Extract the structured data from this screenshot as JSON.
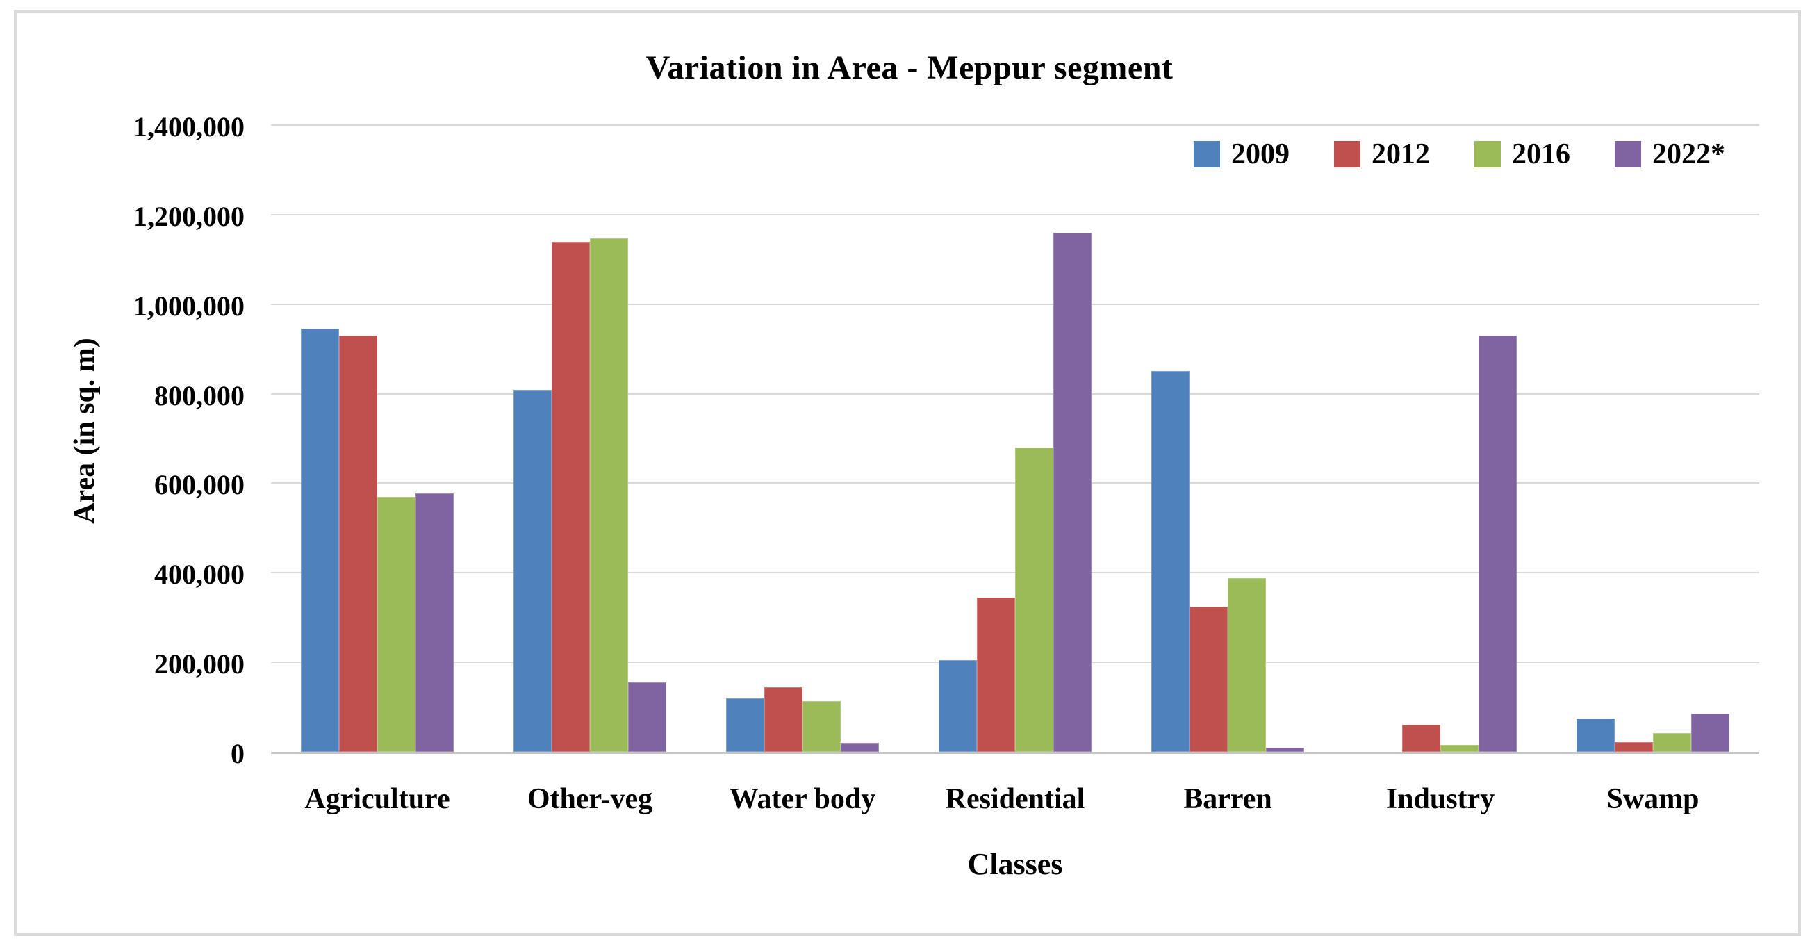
{
  "chart_data": {
    "type": "bar",
    "title": "Variation in Area - Meppur segment",
    "xlabel": "Classes",
    "ylabel": "Area (in sq. m)",
    "categories": [
      "Agriculture",
      "Other-veg",
      "Water body",
      "Residential",
      "Barren",
      "Industry",
      "Swamp"
    ],
    "series": [
      {
        "name": "2009",
        "color": "#4F81BD",
        "values": [
          945000,
          808000,
          120000,
          205000,
          850000,
          0,
          75000
        ]
      },
      {
        "name": "2012",
        "color": "#C0504D",
        "values": [
          930000,
          1140000,
          145000,
          345000,
          325000,
          60000,
          22000
        ]
      },
      {
        "name": "2016",
        "color": "#9BBB59",
        "values": [
          570000,
          1147000,
          113000,
          680000,
          388000,
          15000,
          42000
        ]
      },
      {
        "name": "2022*",
        "color": "#8064A2",
        "values": [
          578000,
          155000,
          20000,
          1160000,
          10000,
          930000,
          85000
        ]
      }
    ],
    "ylim": [
      0,
      1400000
    ],
    "y_tick_step": 200000,
    "y_tick_labels": [
      "0",
      "200,000",
      "400,000",
      "600,000",
      "800,000",
      "1,000,000",
      "1,200,000",
      "1,400,000"
    ],
    "grid": true,
    "legend_position": "top-right"
  },
  "colors": {
    "gridline": "#D9D9D9",
    "axis_line": "#C6C6C6",
    "frame_border": "#DADADA",
    "text": "#000000"
  }
}
